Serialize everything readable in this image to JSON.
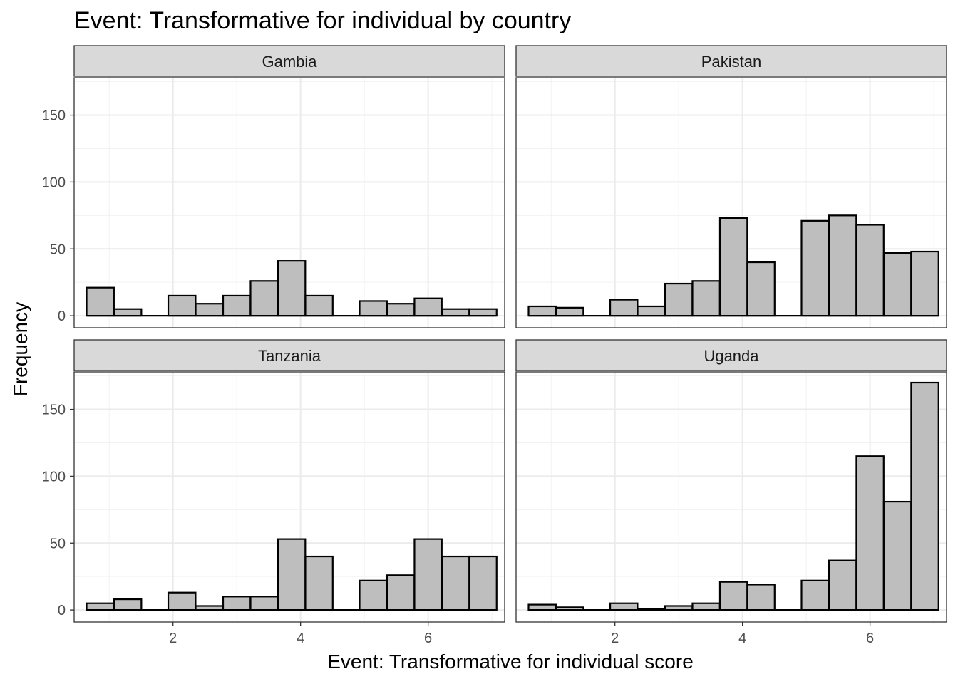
{
  "chart_data": {
    "type": "bar",
    "title": "Event: Transformative for individual by country",
    "xlabel": "Event: Transformative for individual score",
    "ylabel": "Frequency",
    "xlim": [
      0.45,
      7.2
    ],
    "ylim": [
      -9,
      178
    ],
    "x_ticks": [
      2,
      4,
      6
    ],
    "y_ticks": [
      0,
      50,
      100,
      150
    ],
    "bin_centers": [
      0.86,
      1.29,
      1.71,
      2.14,
      2.57,
      3.0,
      3.43,
      3.86,
      4.29,
      4.71,
      5.14,
      5.57,
      6.0,
      6.43,
      6.86
    ],
    "bin_width": 0.4286,
    "fill_color": "#bebebe",
    "outline_color": "#000000",
    "strip_fill": "#d9d9d9",
    "grid": true,
    "panels": [
      {
        "name": "Gambia",
        "values": [
          21,
          5,
          0,
          15,
          9,
          15,
          26,
          41,
          15,
          0,
          11,
          9,
          13,
          5,
          5
        ]
      },
      {
        "name": "Pakistan",
        "values": [
          7,
          6,
          0,
          12,
          7,
          24,
          26,
          73,
          40,
          0,
          71,
          75,
          68,
          47,
          48
        ]
      },
      {
        "name": "Tanzania",
        "values": [
          5,
          8,
          0,
          13,
          3,
          10,
          10,
          53,
          40,
          0,
          22,
          26,
          53,
          40,
          40
        ]
      },
      {
        "name": "Uganda",
        "values": [
          4,
          2,
          0,
          5,
          1,
          3,
          5,
          21,
          19,
          0,
          22,
          37,
          115,
          81,
          170
        ]
      }
    ]
  }
}
